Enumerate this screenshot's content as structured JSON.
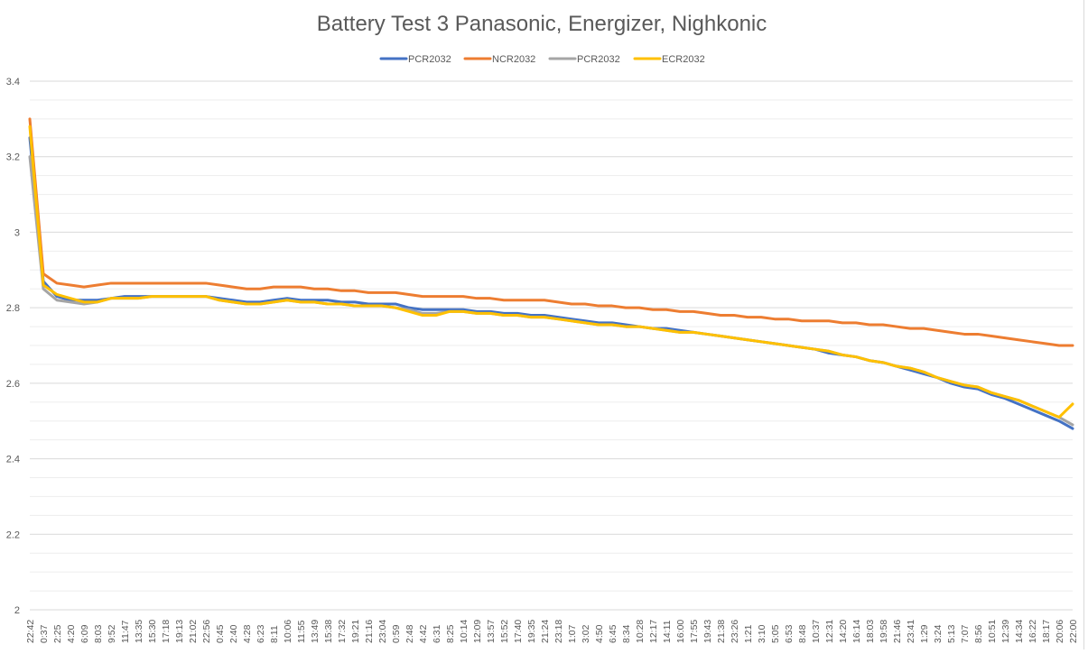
{
  "chart_data": {
    "type": "line",
    "title": "Battery Test 3 Panasonic, Energizer, Nighkonic",
    "xlabel": "",
    "ylabel": "",
    "ylim": [
      2,
      3.4
    ],
    "yticks": [
      "2",
      "2.2",
      "2.4",
      "2.6",
      "2.8",
      "3",
      "3.2",
      "3.4"
    ],
    "grid": true,
    "minor_grid": true,
    "legend_position": "top-center",
    "x_categories": [
      "22:42",
      "0:37",
      "2:25",
      "4:20",
      "6:09",
      "8:03",
      "9:52",
      "11:47",
      "13:35",
      "15:30",
      "17:18",
      "19:13",
      "21:02",
      "22:56",
      "0:45",
      "2:40",
      "4:28",
      "6:23",
      "8:11",
      "10:06",
      "11:55",
      "13:49",
      "15:38",
      "17:32",
      "19:21",
      "21:16",
      "23:04",
      "0:59",
      "2:48",
      "4:42",
      "6:31",
      "8:25",
      "10:14",
      "12:09",
      "13:57",
      "15:52",
      "17:40",
      "19:35",
      "21:24",
      "23:18",
      "1:07",
      "3:02",
      "4:50",
      "6:45",
      "8:34",
      "10:28",
      "12:17",
      "14:11",
      "16:00",
      "17:55",
      "19:43",
      "21:38",
      "23:26",
      "1:21",
      "3:10",
      "5:05",
      "6:53",
      "8:48",
      "10:37",
      "12:31",
      "14:20",
      "16:14",
      "18:03",
      "19:58",
      "21:46",
      "23:41",
      "1:29",
      "3:24",
      "5:13",
      "7:07",
      "8:56",
      "10:51",
      "12:39",
      "14:34",
      "16:22",
      "18:17",
      "20:06",
      "22:00"
    ],
    "series": [
      {
        "name": "PCR2032",
        "color": "#4472c4",
        "values": [
          3.25,
          2.87,
          2.83,
          2.82,
          2.82,
          2.82,
          2.825,
          2.83,
          2.83,
          2.83,
          2.83,
          2.83,
          2.83,
          2.83,
          2.825,
          2.82,
          2.815,
          2.815,
          2.82,
          2.825,
          2.82,
          2.82,
          2.82,
          2.815,
          2.815,
          2.81,
          2.81,
          2.81,
          2.8,
          2.795,
          2.795,
          2.795,
          2.795,
          2.79,
          2.79,
          2.785,
          2.785,
          2.78,
          2.78,
          2.775,
          2.77,
          2.765,
          2.76,
          2.76,
          2.755,
          2.75,
          2.745,
          2.745,
          2.74,
          2.735,
          2.73,
          2.725,
          2.72,
          2.715,
          2.71,
          2.705,
          2.7,
          2.695,
          2.69,
          2.68,
          2.675,
          2.67,
          2.66,
          2.655,
          2.645,
          2.635,
          2.625,
          2.615,
          2.6,
          2.59,
          2.585,
          2.57,
          2.56,
          2.545,
          2.53,
          2.515,
          2.5,
          2.48
        ]
      },
      {
        "name": "NCR2032",
        "color": "#ed7d31",
        "values": [
          3.3,
          2.89,
          2.865,
          2.86,
          2.855,
          2.86,
          2.865,
          2.865,
          2.865,
          2.865,
          2.865,
          2.865,
          2.865,
          2.865,
          2.86,
          2.855,
          2.85,
          2.85,
          2.855,
          2.855,
          2.855,
          2.85,
          2.85,
          2.845,
          2.845,
          2.84,
          2.84,
          2.84,
          2.835,
          2.83,
          2.83,
          2.83,
          2.83,
          2.825,
          2.825,
          2.82,
          2.82,
          2.82,
          2.82,
          2.815,
          2.81,
          2.81,
          2.805,
          2.805,
          2.8,
          2.8,
          2.795,
          2.795,
          2.79,
          2.79,
          2.785,
          2.78,
          2.78,
          2.775,
          2.775,
          2.77,
          2.77,
          2.765,
          2.765,
          2.765,
          2.76,
          2.76,
          2.755,
          2.755,
          2.75,
          2.745,
          2.745,
          2.74,
          2.735,
          2.73,
          2.73,
          2.725,
          2.72,
          2.715,
          2.71,
          2.705,
          2.7,
          2.7
        ]
      },
      {
        "name": "PCR2032",
        "color": "#a5a5a5",
        "values": [
          3.2,
          2.85,
          2.82,
          2.815,
          2.81,
          2.815,
          2.825,
          2.825,
          2.825,
          2.83,
          2.83,
          2.83,
          2.83,
          2.83,
          2.82,
          2.815,
          2.81,
          2.81,
          2.815,
          2.82,
          2.815,
          2.815,
          2.81,
          2.81,
          2.805,
          2.805,
          2.805,
          2.8,
          2.795,
          2.785,
          2.785,
          2.79,
          2.79,
          2.785,
          2.785,
          2.78,
          2.78,
          2.775,
          2.775,
          2.77,
          2.765,
          2.76,
          2.755,
          2.755,
          2.75,
          2.75,
          2.745,
          2.74,
          2.735,
          2.735,
          2.73,
          2.725,
          2.72,
          2.715,
          2.71,
          2.705,
          2.7,
          2.695,
          2.69,
          2.685,
          2.675,
          2.67,
          2.66,
          2.655,
          2.645,
          2.64,
          2.63,
          2.615,
          2.605,
          2.595,
          2.59,
          2.575,
          2.565,
          2.555,
          2.54,
          2.525,
          2.51,
          2.49
        ]
      },
      {
        "name": "ECR2032",
        "color": "#ffc000",
        "values": [
          3.28,
          2.86,
          2.835,
          2.825,
          2.815,
          2.815,
          2.825,
          2.825,
          2.825,
          2.83,
          2.83,
          2.83,
          2.83,
          2.83,
          2.82,
          2.815,
          2.81,
          2.81,
          2.815,
          2.82,
          2.815,
          2.815,
          2.81,
          2.81,
          2.805,
          2.805,
          2.805,
          2.8,
          2.79,
          2.78,
          2.78,
          2.79,
          2.79,
          2.785,
          2.785,
          2.78,
          2.78,
          2.775,
          2.775,
          2.77,
          2.765,
          2.76,
          2.755,
          2.755,
          2.75,
          2.75,
          2.745,
          2.74,
          2.735,
          2.735,
          2.73,
          2.725,
          2.72,
          2.715,
          2.71,
          2.705,
          2.7,
          2.695,
          2.69,
          2.685,
          2.675,
          2.67,
          2.66,
          2.655,
          2.645,
          2.64,
          2.63,
          2.615,
          2.605,
          2.595,
          2.59,
          2.575,
          2.565,
          2.555,
          2.54,
          2.525,
          2.51,
          2.545
        ]
      }
    ]
  }
}
